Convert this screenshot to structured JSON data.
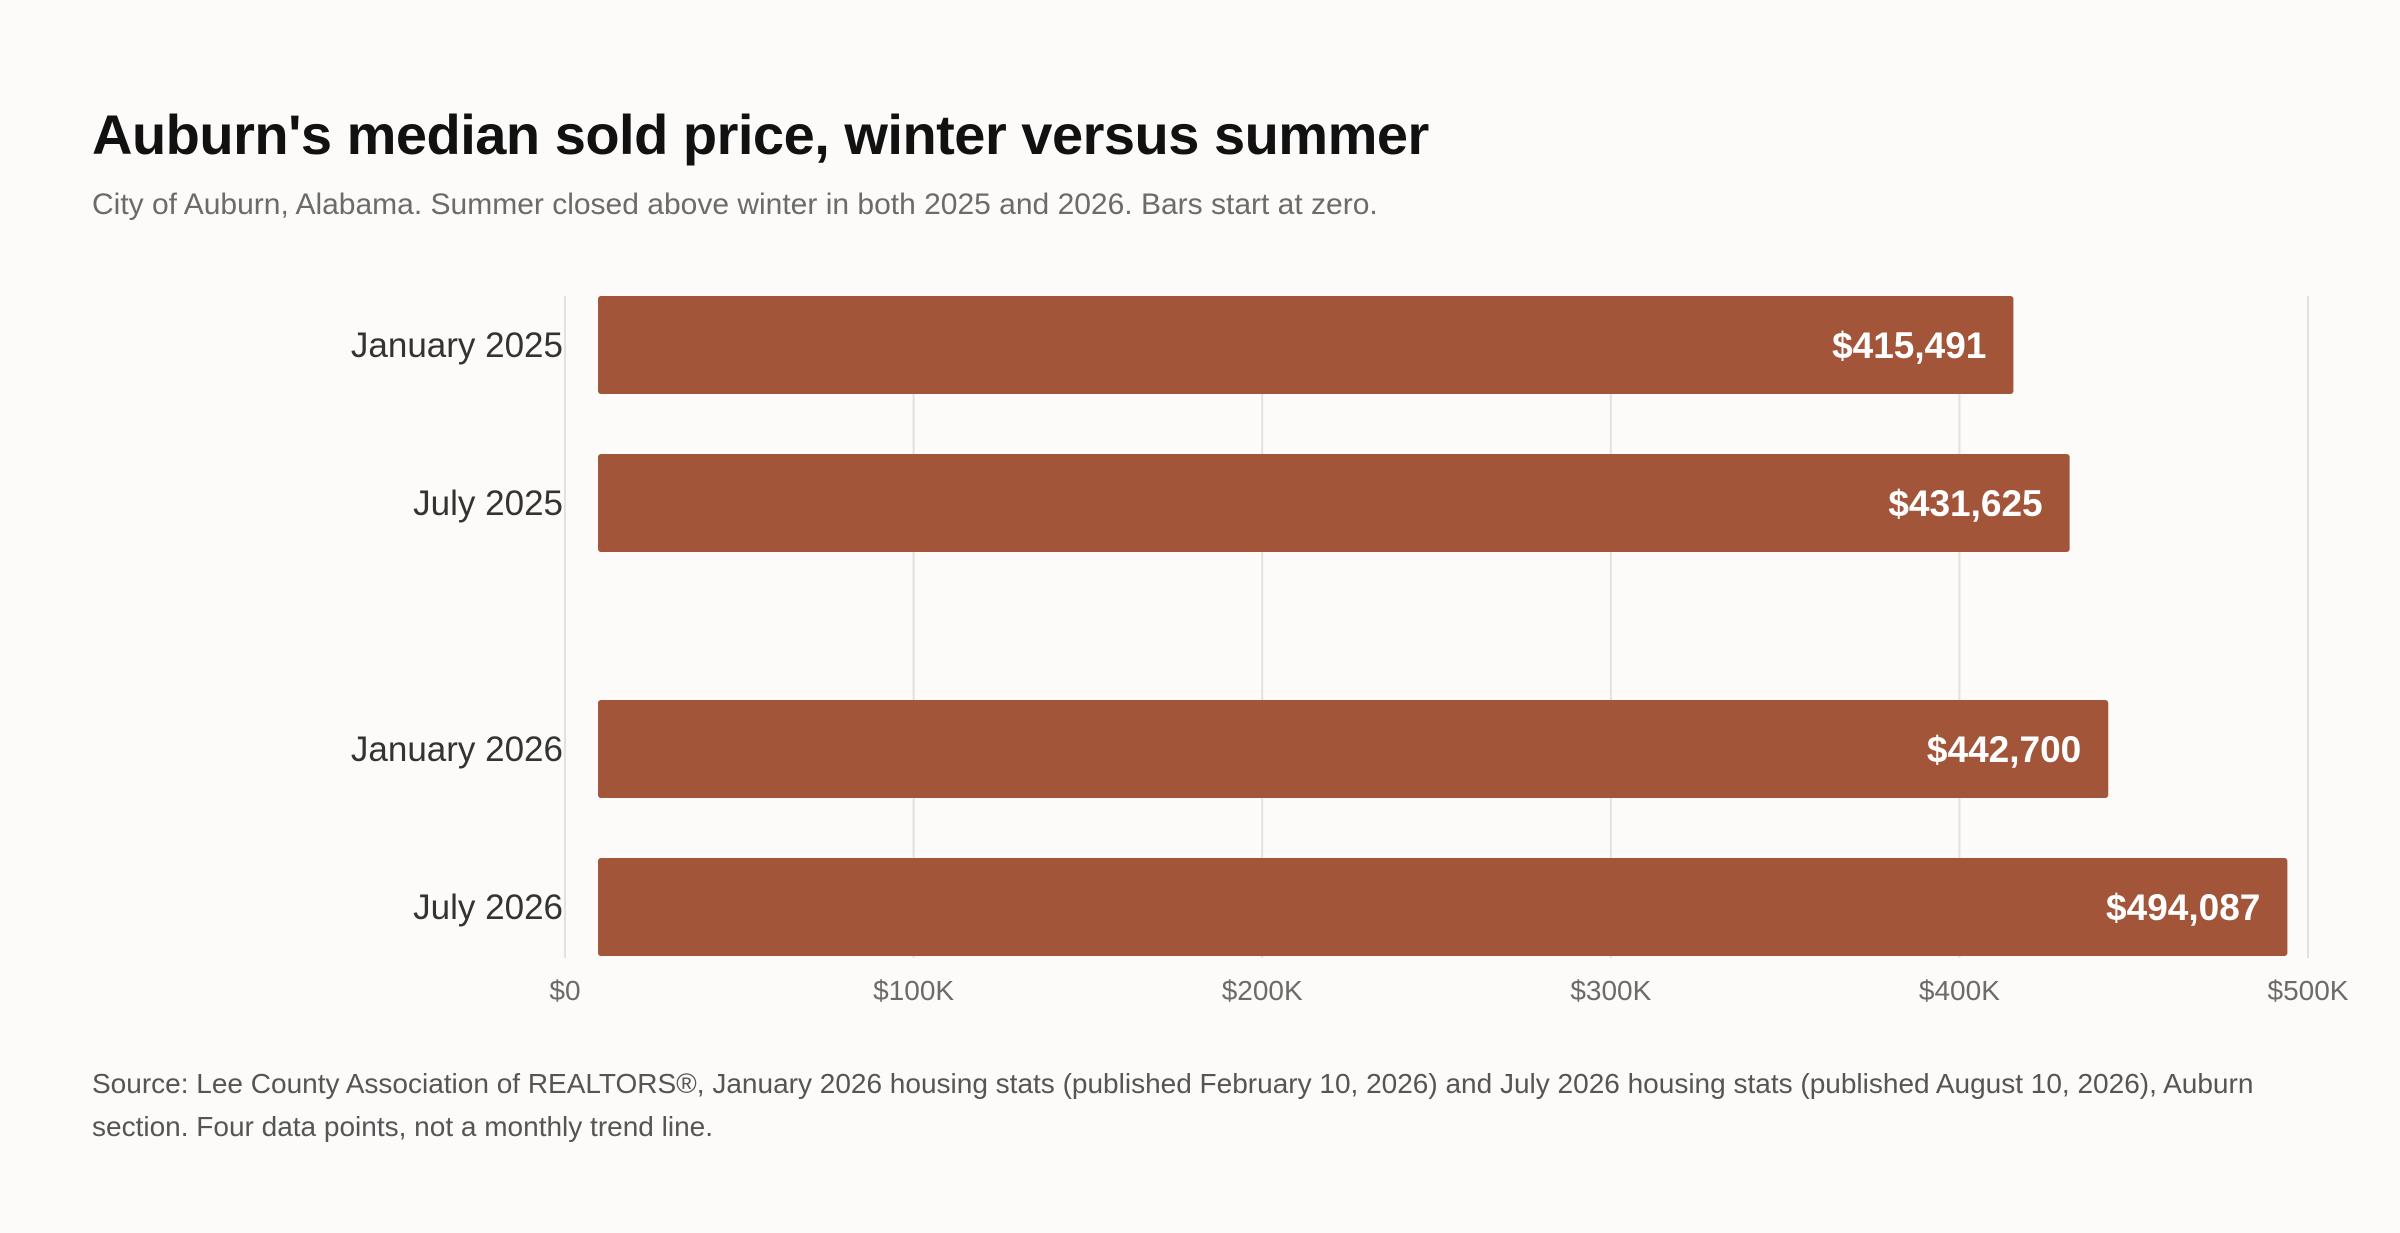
{
  "header": {
    "title": "Auburn's median sold price, winter versus summer",
    "subtitle": "City of Auburn, Alabama. Summer closed above winter in both 2025 and 2026. Bars start at zero."
  },
  "chart_data": {
    "type": "bar",
    "orientation": "horizontal",
    "title": "Auburn's median sold price, winter versus summer",
    "categories": [
      "January 2025",
      "July 2025",
      "January 2026",
      "July 2026"
    ],
    "values": [
      415491,
      431625,
      442700,
      494087
    ],
    "value_labels": [
      "$415,491",
      "$431,625",
      "$442,700",
      "$494,087"
    ],
    "xlim": [
      0,
      500000
    ],
    "x_ticks": [
      0,
      100000,
      200000,
      300000,
      400000,
      500000
    ],
    "x_tick_labels": [
      "$0",
      "$100K",
      "$200K",
      "$300K",
      "$400K",
      "$500K"
    ],
    "grid": true,
    "bar_color": "#a3553a"
  },
  "footer": {
    "source": "Source: Lee County Association of REALTORS®, January 2026 housing stats (published February 10, 2026) and July 2026 housing stats (published August 10, 2026), Auburn section. Four data points, not a monthly trend line."
  }
}
